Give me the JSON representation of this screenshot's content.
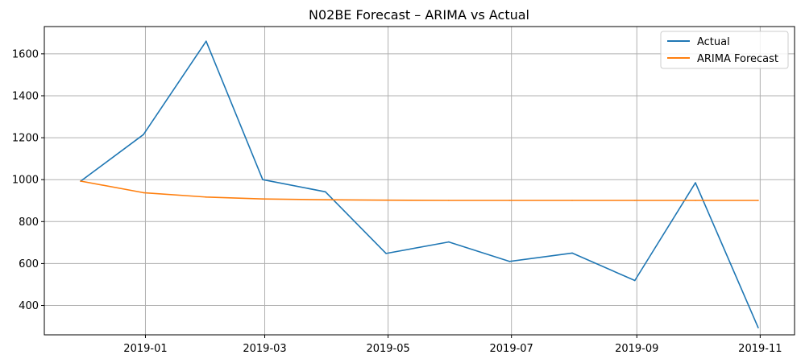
{
  "chart_data": {
    "type": "line",
    "title": "N02BE Forecast – ARIMA vs Actual",
    "xlabel": "",
    "ylabel": "",
    "x": [
      "2018-11-30",
      "2018-12-31",
      "2019-01-31",
      "2019-02-28",
      "2019-03-31",
      "2019-04-30",
      "2019-05-31",
      "2019-06-30",
      "2019-07-31",
      "2019-08-31",
      "2019-09-30",
      "2019-10-31"
    ],
    "x_ticks": [
      "2019-01",
      "2019-03",
      "2019-05",
      "2019-07",
      "2019-09",
      "2019-11"
    ],
    "y_ticks": [
      400,
      600,
      800,
      1000,
      1200,
      1400,
      1600
    ],
    "ylim": [
      260,
      1730
    ],
    "xlim": [
      "2018-11-12",
      "2019-11-18"
    ],
    "grid": true,
    "legend_position": "top-right",
    "series": [
      {
        "name": "Actual",
        "color": "#1f77b4",
        "values": [
          993,
          1215,
          1660,
          1000,
          942,
          648,
          703,
          610,
          650,
          519,
          985,
          295
        ]
      },
      {
        "name": "ARIMA Forecast",
        "color": "#ff7f0e",
        "values": [
          993,
          938,
          917,
          908,
          904,
          902,
          901,
          901,
          901,
          901,
          901,
          901
        ]
      }
    ]
  }
}
